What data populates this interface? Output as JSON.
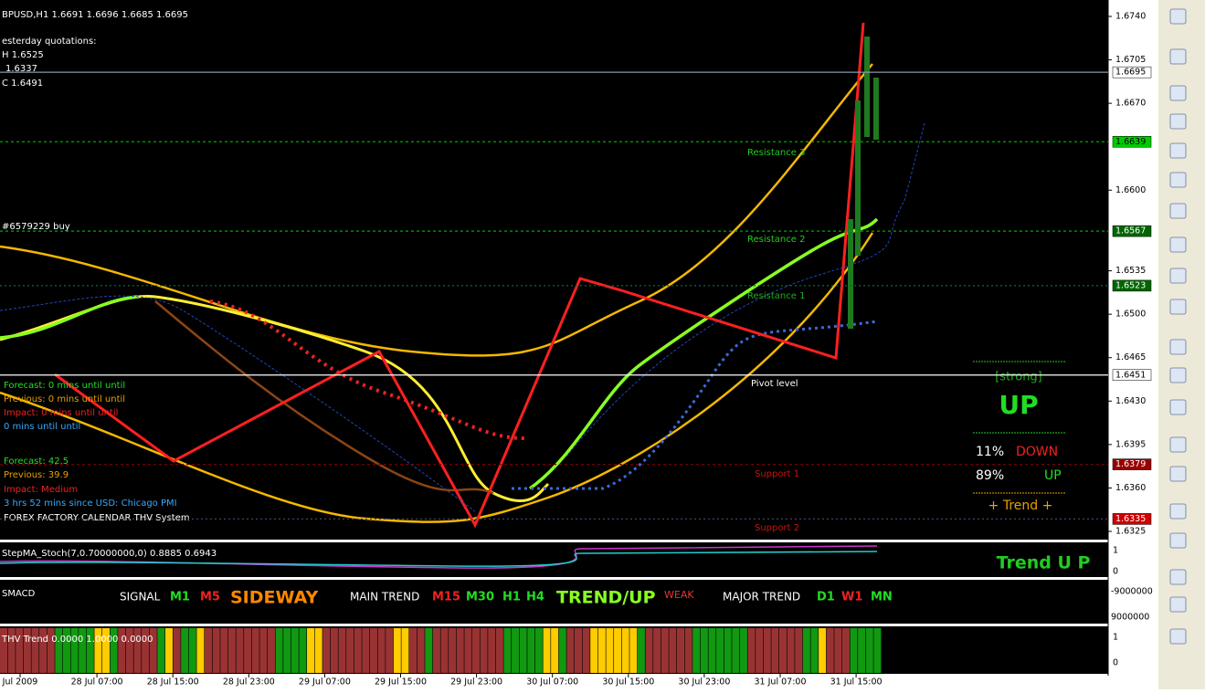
{
  "header": {
    "symbol": "BPUSD,H1 1.6691 1.6696 1.6685 1.6695",
    "yesterday": "esterday quotations:",
    "high": "H 1.6525",
    "low": "1.6337",
    "close": "C 1.6491",
    "order": "#6579229 buy"
  },
  "news": [
    "Forecast: 0 mins until until",
    "Previous: 0 mins until until",
    "Impact: 0 mins until until",
    "0 mins until until"
  ],
  "news2": [
    "Forecast: 42.5",
    "Previous: 39.9",
    "Impact: Medium",
    "3 hrs 52 mins since USD: Chicago PMI",
    "FOREX FACTORY CALENDAR THV System"
  ],
  "levels": {
    "r3": "Resistance 3",
    "r2": "Resistance 2",
    "r1": "Resistance 1",
    "pivot": "Pivot level",
    "s1": "Support 1",
    "s2": "Support 2"
  },
  "panel": {
    "strength": "[strong]",
    "direction": "UP",
    "down_pct": "11%",
    "down": "DOWN",
    "up_pct": "89%",
    "up": "UP",
    "trend": "+  Trend  +",
    "trend_big": "Trend U P"
  },
  "price_axis": [
    "1.6740",
    "1.6705",
    "1.6670",
    "1.6600",
    "1.6535",
    "1.6500",
    "1.6465",
    "1.6430",
    "1.6395",
    "1.6360",
    "1.6325"
  ],
  "price_tags": [
    {
      "label": "1.6695",
      "bg": "#ffffff",
      "fg": "#000000",
      "line": "#8899aa",
      "dash": ""
    },
    {
      "label": "1.6639",
      "bg": "#00cc00",
      "fg": "#000000",
      "line": "#00aa00",
      "dash": "3 3"
    },
    {
      "label": "1.6567",
      "bg": "#006600",
      "fg": "#ffffff",
      "line": "#00aa00",
      "dash": "3 3"
    },
    {
      "label": "1.6523",
      "bg": "#006600",
      "fg": "#ffffff",
      "line": "#0a6a3a",
      "dash": "2 3"
    },
    {
      "label": "1.6451",
      "bg": "#ffffff",
      "fg": "#000000",
      "line": "#ffffff",
      "dash": ""
    },
    {
      "label": "1.6379",
      "bg": "#990000",
      "fg": "#ffffff",
      "line": "#770000",
      "dash": "3 3"
    },
    {
      "label": "1.6335",
      "bg": "#cc0000",
      "fg": "#ffffff",
      "line": "#444466",
      "dash": "2 3"
    }
  ],
  "stoch": {
    "title": "StepMA_Stoch(7,0.70000000,0) 0.8885 0.6943",
    "axis": [
      "1",
      "0"
    ]
  },
  "macd": {
    "title": "SMACD",
    "signal": "SIGNAL",
    "m1": "M1",
    "m5": "M5",
    "sideway": "SIDEWAY",
    "main": "MAIN TREND",
    "m15": "M15",
    "m30": "M30",
    "h1": "H1",
    "h4": "H4",
    "trendup": "TREND/UP",
    "weak": "WEAK",
    "major": "MAJOR TREND",
    "d1": "D1",
    "w1": "W1",
    "mn": "MN",
    "axis": [
      "-9000000",
      "9000000"
    ]
  },
  "thv": {
    "title": "THV Trend 0.0000 1.0000 0.0000",
    "axis": [
      "1",
      "0"
    ]
  },
  "time_axis": [
    "Jul 2009",
    "28 Jul 07:00",
    "28 Jul 15:00",
    "28 Jul 23:00",
    "29 Jul 07:00",
    "29 Jul 15:00",
    "29 Jul 23:00",
    "30 Jul 07:00",
    "30 Jul 15:00",
    "30 Jul 23:00",
    "31 Jul 07:00",
    "31 Jul 15:00"
  ]
}
